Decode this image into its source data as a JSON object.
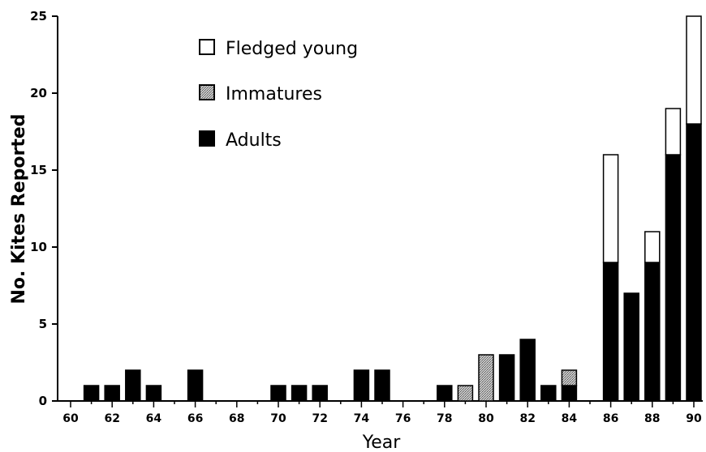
{
  "chart_data": {
    "type": "bar",
    "stacked": true,
    "xlabel": "Year",
    "ylabel": "No. Kites Reported",
    "ylim": [
      0,
      25
    ],
    "yticks": [
      0,
      5,
      10,
      15,
      20,
      25
    ],
    "xlim": [
      60,
      90
    ],
    "xticks": [
      "60",
      "62",
      "64",
      "66",
      "68",
      "70",
      "72",
      "74",
      "76",
      "78",
      "80",
      "82",
      "84",
      "86",
      "88",
      "90"
    ],
    "legend_position": "top-left",
    "series": [
      {
        "name": "Adults",
        "color": "#000000",
        "pattern": "solid"
      },
      {
        "name": "Immatures",
        "color": "#9a9a9a",
        "pattern": "stippled"
      },
      {
        "name": "Fledged young",
        "color": "#ffffff",
        "pattern": "open"
      }
    ],
    "data": [
      {
        "x": 61,
        "adults": 1,
        "immatures": 0,
        "fledged_young": 0
      },
      {
        "x": 62,
        "adults": 1,
        "immatures": 0,
        "fledged_young": 0
      },
      {
        "x": 63,
        "adults": 2,
        "immatures": 0,
        "fledged_young": 0
      },
      {
        "x": 64,
        "adults": 1,
        "immatures": 0,
        "fledged_young": 0
      },
      {
        "x": 66,
        "adults": 2,
        "immatures": 0,
        "fledged_young": 0
      },
      {
        "x": 70,
        "adults": 1,
        "immatures": 0,
        "fledged_young": 0
      },
      {
        "x": 71,
        "adults": 1,
        "immatures": 0,
        "fledged_young": 0
      },
      {
        "x": 72,
        "adults": 1,
        "immatures": 0,
        "fledged_young": 0
      },
      {
        "x": 74,
        "adults": 2,
        "immatures": 0,
        "fledged_young": 0
      },
      {
        "x": 75,
        "adults": 2,
        "immatures": 0,
        "fledged_young": 0
      },
      {
        "x": 78,
        "adults": 1,
        "immatures": 0,
        "fledged_young": 0
      },
      {
        "x": 79,
        "adults": 0,
        "immatures": 1,
        "fledged_young": 0
      },
      {
        "x": 80,
        "adults": 0,
        "immatures": 3,
        "fledged_young": 0
      },
      {
        "x": 81,
        "adults": 3,
        "immatures": 0,
        "fledged_young": 0
      },
      {
        "x": 82,
        "adults": 4,
        "immatures": 0,
        "fledged_young": 0
      },
      {
        "x": 83,
        "adults": 1,
        "immatures": 0,
        "fledged_young": 0
      },
      {
        "x": 84,
        "adults": 1,
        "immatures": 1,
        "fledged_young": 0
      },
      {
        "x": 86,
        "adults": 9,
        "immatures": 0,
        "fledged_young": 7
      },
      {
        "x": 87,
        "adults": 7,
        "immatures": 0,
        "fledged_young": 0
      },
      {
        "x": 88,
        "adults": 9,
        "immatures": 0,
        "fledged_young": 2
      },
      {
        "x": 89,
        "adults": 16,
        "immatures": 0,
        "fledged_young": 3
      },
      {
        "x": 90,
        "adults": 18,
        "immatures": 0,
        "fledged_young": 7
      }
    ]
  },
  "legend": {
    "items": [
      {
        "label": "Fledged young",
        "key": "fledged_young"
      },
      {
        "label": "Immatures",
        "key": "immatures"
      },
      {
        "label": "Adults",
        "key": "adults"
      }
    ]
  }
}
